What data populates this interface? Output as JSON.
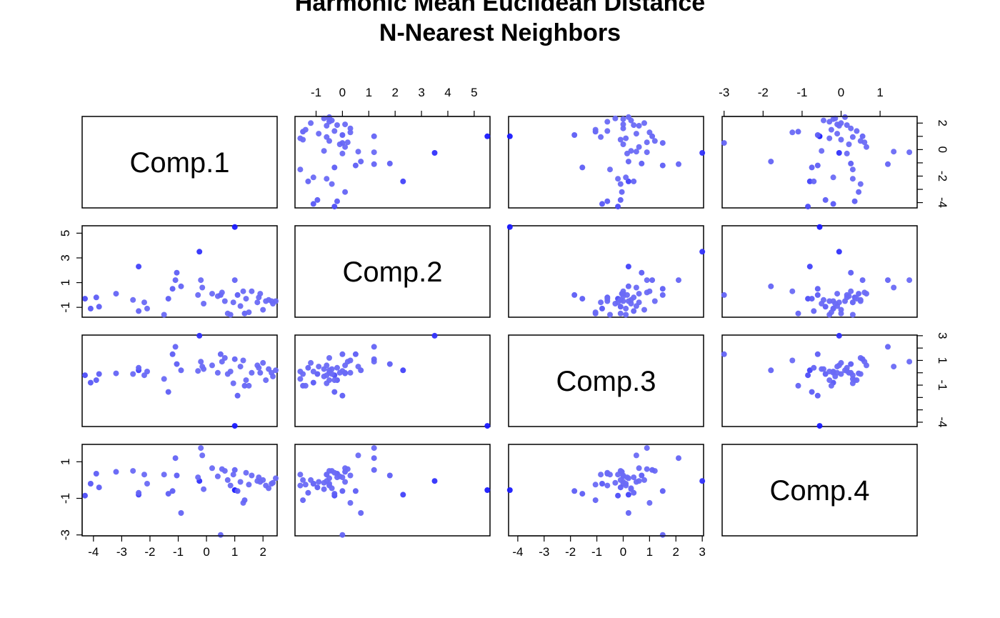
{
  "title_line1": "Harmonic Mean Euclidean Distance",
  "title_line2": "N-Nearest Neighbors",
  "chart_data": {
    "type": "scatter",
    "subtype": "scatterplot-matrix",
    "title": "Harmonic Mean Euclidean Distance\nN-Nearest Neighbors",
    "variables": [
      "Comp.1",
      "Comp.2",
      "Comp.3",
      "Comp.4"
    ],
    "ranges": {
      "Comp.1": [
        -4.4,
        2.5
      ],
      "Comp.2": [
        -1.8,
        5.6
      ],
      "Comp.3": [
        -4.35,
        3.05
      ],
      "Comp.4": [
        -3.05,
        1.95
      ]
    },
    "ticks": {
      "Comp.1": [
        -4,
        -3,
        -2,
        -1,
        0,
        1,
        2
      ],
      "Comp.2": [
        -1,
        1,
        3,
        5
      ],
      "Comp.2_top": [
        -1,
        0,
        1,
        2,
        3,
        4,
        5
      ],
      "Comp.3": [
        -4,
        -3,
        -2,
        -1,
        0,
        1,
        2,
        3
      ],
      "Comp.3_right_labels": [
        -4,
        -1,
        1,
        3
      ],
      "Comp.4": [
        -3,
        -1,
        1
      ],
      "Comp.4_top": [
        -3,
        -2,
        -1,
        0,
        1
      ],
      "Comp.1_right": [
        -4,
        -2,
        0,
        2
      ]
    },
    "point_colors": {
      "base": "#8c8cf0",
      "highlight": "#1a1aff"
    },
    "points": [
      {
        "c1": 1.0,
        "c2": 5.5,
        "c3": -4.3,
        "c4": -0.55,
        "w": 1.0
      },
      {
        "c1": -0.25,
        "c2": 3.5,
        "c3": 3.0,
        "c4": -0.05,
        "w": 0.8
      },
      {
        "c1": -2.4,
        "c2": 2.3,
        "c3": 0.2,
        "c4": -0.8,
        "w": 0.65
      },
      {
        "c1": 2.3,
        "c2": -0.5,
        "c3": 0.0,
        "c4": -0.2,
        "w": 0.3
      },
      {
        "c1": -4.3,
        "c2": -0.3,
        "c3": -0.2,
        "c4": -0.85,
        "w": 0.55
      },
      {
        "c1": -4.1,
        "c2": -1.1,
        "c3": -0.8,
        "c4": -0.2,
        "w": 0.45
      },
      {
        "c1": -3.9,
        "c2": -0.2,
        "c3": -0.6,
        "c4": 0.35,
        "w": 0.4
      },
      {
        "c1": -3.8,
        "c2": -0.95,
        "c3": -0.1,
        "c4": -0.4,
        "w": 0.4
      },
      {
        "c1": -3.2,
        "c2": 0.1,
        "c3": -0.05,
        "c4": 0.45,
        "w": 0.35
      },
      {
        "c1": -2.6,
        "c2": -0.4,
        "c3": -0.1,
        "c4": 0.5,
        "w": 0.3
      },
      {
        "c1": -2.4,
        "c2": -1.3,
        "c3": 0.4,
        "c4": -0.7,
        "w": 0.35
      },
      {
        "c1": -2.2,
        "c2": -0.6,
        "c3": -0.2,
        "c4": 0.3,
        "w": 0.3
      },
      {
        "c1": -2.1,
        "c2": -1.1,
        "c3": 0.1,
        "c4": -0.2,
        "w": 0.3
      },
      {
        "c1": -1.5,
        "c2": -1.6,
        "c3": -0.5,
        "c4": 0.3,
        "w": 0.3
      },
      {
        "c1": -1.35,
        "c2": -0.3,
        "c3": -1.55,
        "c4": -0.75,
        "w": 0.4
      },
      {
        "c1": -1.2,
        "c2": 0.5,
        "c3": 1.5,
        "c4": -0.6,
        "w": 0.4
      },
      {
        "c1": -1.1,
        "c2": 1.2,
        "c3": 2.1,
        "c4": 1.2,
        "w": 0.35
      },
      {
        "c1": -1.05,
        "c2": 1.8,
        "c3": 0.7,
        "c4": 0.25,
        "w": 0.4
      },
      {
        "c1": -0.9,
        "c2": 0.7,
        "c3": 0.2,
        "c4": -1.8,
        "w": 0.35
      },
      {
        "c1": -0.3,
        "c2": 0.0,
        "c3": 0.15,
        "c4": 0.15,
        "w": 0.3
      },
      {
        "c1": -0.2,
        "c2": 1.2,
        "c3": 0.9,
        "c4": 1.75,
        "w": 0.3
      },
      {
        "c1": -0.15,
        "c2": 0.6,
        "c3": 0.5,
        "c4": 1.35,
        "w": 0.3
      },
      {
        "c1": -0.1,
        "c2": -0.7,
        "c3": 0.3,
        "c4": -0.5,
        "w": 0.3
      },
      {
        "c1": 0.2,
        "c2": 0.1,
        "c3": 0.6,
        "c4": 0.65,
        "w": 0.3
      },
      {
        "c1": 0.4,
        "c2": -0.1,
        "c3": 0.0,
        "c4": 0.2,
        "w": 0.3
      },
      {
        "c1": 0.5,
        "c2": 0.0,
        "c3": 1.5,
        "c4": -3.0,
        "w": 0.35
      },
      {
        "c1": 0.55,
        "c2": 0.2,
        "c3": 0.9,
        "c4": 0.6,
        "w": 0.3
      },
      {
        "c1": 0.65,
        "c2": -0.5,
        "c3": 1.2,
        "c4": 0.5,
        "w": 0.3
      },
      {
        "c1": 0.75,
        "c2": -1.5,
        "c3": -0.1,
        "c4": 0.0,
        "w": 0.3
      },
      {
        "c1": 0.85,
        "c2": -1.6,
        "c3": 0.1,
        "c4": -0.3,
        "w": 0.3
      },
      {
        "c1": 0.95,
        "c2": -0.6,
        "c3": -0.85,
        "c4": 0.3,
        "w": 0.3
      },
      {
        "c1": 1.0,
        "c2": 1.2,
        "c3": 1.1,
        "c4": 0.55,
        "w": 0.35
      },
      {
        "c1": 1.1,
        "c2": 0.0,
        "c3": -1.85,
        "c4": -0.6,
        "w": 0.4
      },
      {
        "c1": 1.2,
        "c2": -0.9,
        "c3": 0.5,
        "c4": -0.1,
        "w": 0.3
      },
      {
        "c1": 1.3,
        "c2": 0.3,
        "c3": 1.0,
        "c4": -1.25,
        "w": 0.3
      },
      {
        "c1": 1.35,
        "c2": -1.5,
        "c3": -1.05,
        "c4": -1.1,
        "w": 0.35
      },
      {
        "c1": 1.4,
        "c2": -0.3,
        "c3": -0.6,
        "c4": 0.4,
        "w": 0.3
      },
      {
        "c1": 1.5,
        "c2": -1.4,
        "c3": -1.05,
        "c4": -0.25,
        "w": 0.3
      },
      {
        "c1": 1.6,
        "c2": 0.3,
        "c3": 0.0,
        "c4": 0.25,
        "w": 0.3
      },
      {
        "c1": 1.8,
        "c2": -0.6,
        "c3": 0.6,
        "c4": -0.05,
        "w": 0.3
      },
      {
        "c1": 1.85,
        "c2": -0.2,
        "c3": 0.4,
        "c4": 0.15,
        "w": 0.3
      },
      {
        "c1": 1.9,
        "c2": 0.1,
        "c3": 0.0,
        "c4": -0.1,
        "w": 0.3
      },
      {
        "c1": 2.0,
        "c2": -1.2,
        "c3": 0.8,
        "c4": 0.0,
        "w": 0.3
      },
      {
        "c1": 2.1,
        "c2": -0.5,
        "c3": -0.6,
        "c4": -0.3,
        "w": 0.3
      },
      {
        "c1": 2.2,
        "c2": -0.4,
        "c3": 0.3,
        "c4": -0.45,
        "w": 0.3
      },
      {
        "c1": 2.35,
        "c2": -0.7,
        "c3": -0.3,
        "c4": -0.15,
        "w": 0.3
      },
      {
        "c1": 2.45,
        "c2": -0.5,
        "c3": 0.2,
        "c4": 0.1,
        "w": 0.3
      }
    ]
  }
}
